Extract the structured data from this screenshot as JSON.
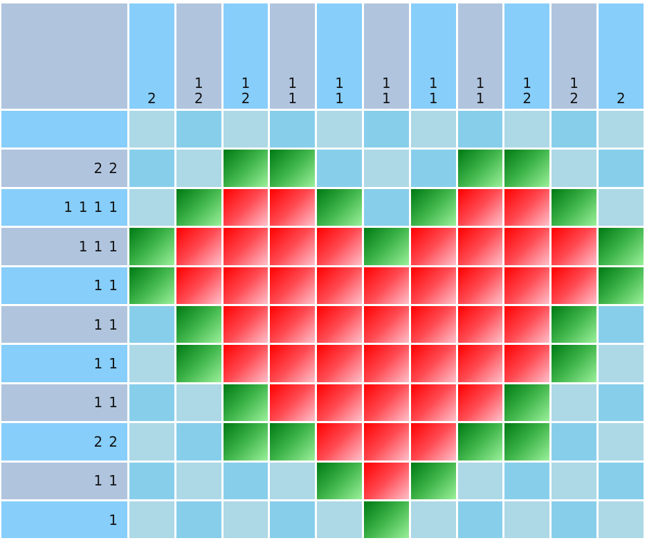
{
  "column_clues": [
    [
      2
    ],
    [
      1,
      2
    ],
    [
      1,
      2
    ],
    [
      1,
      1
    ],
    [
      1,
      1
    ],
    [
      1,
      1
    ],
    [
      1,
      1
    ],
    [
      1,
      1
    ],
    [
      1,
      2
    ],
    [
      1,
      2
    ],
    [
      2
    ]
  ],
  "row_clues": [
    [],
    [
      2,
      2
    ],
    [
      1,
      1,
      1,
      1
    ],
    [
      1,
      1,
      1
    ],
    [
      1,
      1
    ],
    [
      1,
      1
    ],
    [
      1,
      1
    ],
    [
      1,
      1
    ],
    [
      2,
      2
    ],
    [
      1,
      1
    ],
    [
      1
    ]
  ],
  "grid": [
    [
      "empty",
      "empty",
      "empty",
      "empty",
      "empty",
      "empty",
      "empty",
      "empty",
      "empty",
      "empty",
      "empty"
    ],
    [
      "empty",
      "empty",
      "green",
      "green",
      "empty",
      "empty",
      "empty",
      "green",
      "green",
      "empty",
      "empty"
    ],
    [
      "empty",
      "green",
      "red",
      "red",
      "green",
      "empty",
      "green",
      "red",
      "red",
      "green",
      "empty"
    ],
    [
      "green",
      "red",
      "red",
      "red",
      "red",
      "green",
      "red",
      "red",
      "red",
      "red",
      "green"
    ],
    [
      "green",
      "red",
      "red",
      "red",
      "red",
      "red",
      "red",
      "red",
      "red",
      "red",
      "green"
    ],
    [
      "empty",
      "green",
      "red",
      "red",
      "red",
      "red",
      "red",
      "red",
      "red",
      "green",
      "empty"
    ],
    [
      "empty",
      "green",
      "red",
      "red",
      "red",
      "red",
      "red",
      "red",
      "red",
      "green",
      "empty"
    ],
    [
      "empty",
      "empty",
      "green",
      "red",
      "red",
      "red",
      "red",
      "red",
      "green",
      "empty",
      "empty"
    ],
    [
      "empty",
      "empty",
      "green",
      "green",
      "red",
      "red",
      "red",
      "green",
      "green",
      "empty",
      "empty"
    ],
    [
      "empty",
      "empty",
      "empty",
      "empty",
      "green",
      "red",
      "green",
      "empty",
      "empty",
      "empty",
      "empty"
    ],
    [
      "empty",
      "empty",
      "empty",
      "empty",
      "empty",
      "green",
      "empty",
      "empty",
      "empty",
      "empty",
      "empty"
    ]
  ]
}
